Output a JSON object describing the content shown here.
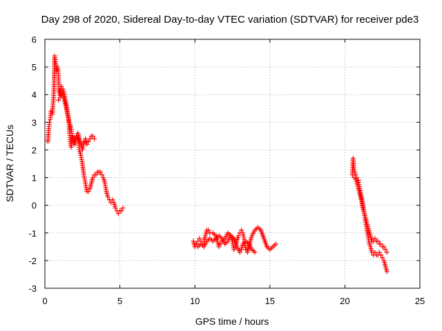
{
  "chart_data": {
    "type": "scatter",
    "title": "Day 298 of 2020, Sidereal Day-to-day VTEC variation (SDTVAR) for receiver pde3",
    "xlabel": "GPS time / hours",
    "ylabel": "SDTVAR / TECUs",
    "xlim": [
      0,
      25
    ],
    "ylim": [
      -3,
      6
    ],
    "xticks": [
      "0",
      "5",
      "10",
      "15",
      "20",
      "25"
    ],
    "yticks": [
      "-3",
      "-2",
      "-1",
      "0",
      "1",
      "2",
      "3",
      "4",
      "5",
      "6"
    ],
    "grid": true,
    "marker": "+",
    "color": "#ff0000",
    "series": [
      {
        "name": "pde3",
        "segments": [
          [
            [
              0.2,
              2.3
            ],
            [
              0.25,
              2.7
            ],
            [
              0.3,
              3.0
            ],
            [
              0.35,
              3.1
            ],
            [
              0.4,
              3.4
            ],
            [
              0.5,
              3.3
            ],
            [
              0.55,
              3.7
            ],
            [
              0.6,
              4.1
            ],
            [
              0.65,
              5.4
            ],
            [
              0.7,
              5.2
            ],
            [
              0.75,
              5.0
            ],
            [
              0.8,
              4.9
            ],
            [
              0.85,
              5.0
            ],
            [
              0.9,
              4.7
            ],
            [
              0.95,
              4.1
            ],
            [
              1.0,
              4.0
            ],
            [
              1.05,
              4.2
            ],
            [
              1.1,
              4.3
            ],
            [
              1.2,
              4.2
            ],
            [
              1.3,
              4.0
            ],
            [
              1.4,
              3.7
            ],
            [
              1.5,
              3.4
            ],
            [
              1.6,
              3.1
            ],
            [
              1.65,
              2.6
            ],
            [
              1.7,
              2.3
            ],
            [
              1.75,
              2.1
            ],
            [
              1.8,
              2.5
            ],
            [
              1.9,
              2.4
            ],
            [
              2.0,
              2.2
            ],
            [
              2.1,
              2.5
            ],
            [
              2.2,
              2.6
            ],
            [
              2.25,
              2.3
            ],
            [
              2.3,
              2.0
            ],
            [
              2.4,
              1.8
            ],
            [
              2.5,
              1.5
            ],
            [
              2.6,
              1.1
            ],
            [
              2.7,
              0.8
            ],
            [
              2.8,
              0.5
            ],
            [
              2.9,
              0.5
            ],
            [
              3.0,
              0.6
            ],
            [
              3.1,
              0.8
            ],
            [
              3.2,
              1.0
            ],
            [
              3.3,
              1.1
            ],
            [
              3.4,
              1.1
            ],
            [
              3.5,
              1.2
            ],
            [
              3.6,
              1.2
            ],
            [
              3.7,
              1.2
            ],
            [
              3.8,
              1.1
            ],
            [
              3.9,
              1.0
            ],
            [
              4.0,
              0.8
            ],
            [
              4.1,
              0.5
            ],
            [
              4.2,
              0.3
            ],
            [
              4.3,
              0.2
            ],
            [
              4.4,
              0.1
            ],
            [
              4.5,
              0.2
            ],
            [
              4.6,
              0.1
            ],
            [
              4.7,
              -0.1
            ],
            [
              4.8,
              -0.2
            ],
            [
              4.9,
              -0.3
            ],
            [
              5.0,
              -0.2
            ],
            [
              5.1,
              -0.2
            ],
            [
              5.2,
              -0.1
            ]
          ],
          [
            [
              0.9,
              3.8
            ],
            [
              1.0,
              3.9
            ],
            [
              1.1,
              4.1
            ],
            [
              1.2,
              4.0
            ],
            [
              1.3,
              3.8
            ],
            [
              1.4,
              3.6
            ],
            [
              1.5,
              3.3
            ],
            [
              1.6,
              3.0
            ],
            [
              1.7,
              2.9
            ],
            [
              1.8,
              2.6
            ],
            [
              1.9,
              2.3
            ],
            [
              2.0,
              2.4
            ],
            [
              2.1,
              2.5
            ],
            [
              2.2,
              2.6
            ],
            [
              2.3,
              2.4
            ],
            [
              2.4,
              2.2
            ],
            [
              2.5,
              2.0
            ],
            [
              2.6,
              2.3
            ],
            [
              2.7,
              2.4
            ],
            [
              2.8,
              2.2
            ],
            [
              2.9,
              2.3
            ],
            [
              3.0,
              2.4
            ],
            [
              3.1,
              2.5
            ],
            [
              3.2,
              2.5
            ],
            [
              3.3,
              2.4
            ]
          ],
          [
            [
              9.9,
              -1.3
            ],
            [
              10.0,
              -1.5
            ],
            [
              10.1,
              -1.4
            ],
            [
              10.2,
              -1.3
            ],
            [
              10.3,
              -1.2
            ],
            [
              10.4,
              -1.3
            ],
            [
              10.5,
              -1.4
            ],
            [
              10.6,
              -1.3
            ],
            [
              10.7,
              -1.1
            ],
            [
              10.8,
              -0.9
            ],
            [
              10.9,
              -0.9
            ],
            [
              11.0,
              -1.0
            ],
            [
              11.2,
              -1.0
            ],
            [
              11.4,
              -1.1
            ],
            [
              11.5,
              -1.3
            ],
            [
              11.6,
              -1.5
            ],
            [
              11.7,
              -1.4
            ],
            [
              11.8,
              -1.3
            ],
            [
              12.0,
              -1.2
            ],
            [
              12.2,
              -1.0
            ],
            [
              12.4,
              -1.1
            ],
            [
              12.5,
              -1.3
            ],
            [
              12.6,
              -1.6
            ],
            [
              12.7,
              -1.5
            ],
            [
              12.8,
              -1.3
            ],
            [
              12.9,
              -1.1
            ],
            [
              13.0,
              -1.0
            ],
            [
              13.1,
              -0.9
            ],
            [
              13.2,
              -1.0
            ],
            [
              13.3,
              -1.3
            ],
            [
              13.4,
              -1.6
            ],
            [
              13.5,
              -1.7
            ],
            [
              13.6,
              -1.5
            ],
            [
              13.8,
              -1.1
            ],
            [
              14.0,
              -0.9
            ],
            [
              14.2,
              -0.8
            ],
            [
              14.4,
              -0.9
            ],
            [
              14.6,
              -1.2
            ],
            [
              14.8,
              -1.5
            ],
            [
              15.0,
              -1.6
            ],
            [
              15.2,
              -1.5
            ],
            [
              15.4,
              -1.4
            ]
          ],
          [
            [
              10.0,
              -1.5
            ],
            [
              10.2,
              -1.5
            ],
            [
              10.4,
              -1.4
            ],
            [
              10.6,
              -1.5
            ],
            [
              10.8,
              -1.3
            ],
            [
              11.0,
              -1.2
            ],
            [
              11.2,
              -1.3
            ],
            [
              11.4,
              -1.2
            ],
            [
              11.6,
              -1.1
            ],
            [
              11.8,
              -1.2
            ],
            [
              12.0,
              -1.4
            ],
            [
              12.2,
              -1.3
            ],
            [
              12.4,
              -1.1
            ],
            [
              12.6,
              -1.2
            ],
            [
              12.8,
              -1.5
            ],
            [
              13.0,
              -1.7
            ],
            [
              13.1,
              -1.6
            ],
            [
              13.2,
              -1.4
            ],
            [
              13.4,
              -1.3
            ],
            [
              13.6,
              -1.4
            ],
            [
              13.8,
              -1.6
            ],
            [
              14.0,
              -1.7
            ]
          ],
          [
            [
              20.5,
              1.1
            ],
            [
              20.55,
              1.7
            ],
            [
              20.6,
              1.3
            ],
            [
              20.7,
              1.1
            ],
            [
              20.8,
              1.0
            ],
            [
              20.9,
              0.9
            ],
            [
              21.0,
              0.6
            ],
            [
              21.1,
              0.3
            ],
            [
              21.2,
              0.0
            ],
            [
              21.3,
              -0.3
            ],
            [
              21.4,
              -0.7
            ],
            [
              21.5,
              -1.0
            ],
            [
              21.6,
              -1.3
            ],
            [
              21.7,
              -1.5
            ],
            [
              21.8,
              -1.7
            ],
            [
              21.9,
              -1.8
            ],
            [
              22.0,
              -1.7
            ],
            [
              22.1,
              -1.8
            ],
            [
              22.2,
              -1.8
            ],
            [
              22.3,
              -1.7
            ],
            [
              22.4,
              -1.8
            ],
            [
              22.5,
              -1.9
            ],
            [
              22.6,
              -2.0
            ],
            [
              22.7,
              -2.2
            ],
            [
              22.8,
              -2.4
            ]
          ],
          [
            [
              20.6,
              1.0
            ],
            [
              20.7,
              1.0
            ],
            [
              20.8,
              0.8
            ],
            [
              20.9,
              0.6
            ],
            [
              21.0,
              0.4
            ],
            [
              21.1,
              0.2
            ],
            [
              21.2,
              -0.1
            ],
            [
              21.3,
              -0.3
            ],
            [
              21.4,
              -0.5
            ],
            [
              21.5,
              -0.7
            ],
            [
              21.6,
              -0.9
            ],
            [
              21.7,
              -1.1
            ],
            [
              21.8,
              -1.3
            ],
            [
              21.9,
              -1.3
            ],
            [
              22.0,
              -1.2
            ],
            [
              22.1,
              -1.3
            ],
            [
              22.2,
              -1.3
            ],
            [
              22.3,
              -1.4
            ],
            [
              22.4,
              -1.4
            ],
            [
              22.5,
              -1.5
            ],
            [
              22.6,
              -1.5
            ],
            [
              22.7,
              -1.6
            ],
            [
              22.8,
              -1.7
            ]
          ]
        ]
      }
    ]
  }
}
